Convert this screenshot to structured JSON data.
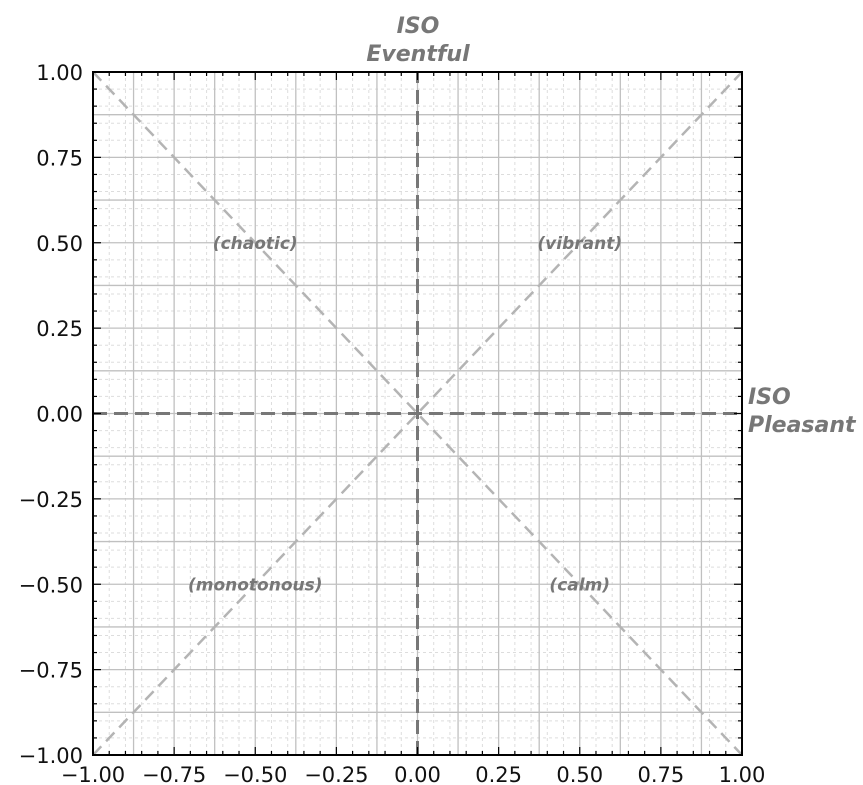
{
  "chart_data": {
    "type": "scatter",
    "xlim": [
      -1.0,
      1.0
    ],
    "ylim": [
      -1.0,
      1.0
    ],
    "grid": true,
    "minor_grid": true,
    "x_ticks": [
      "−1.00",
      "−0.75",
      "−0.50",
      "−0.25",
      "0.00",
      "0.25",
      "0.50",
      "0.75",
      "1.00"
    ],
    "y_ticks": [
      "1.00",
      "0.75",
      "0.50",
      "0.25",
      "0.00",
      "−0.25",
      "−0.50",
      "−0.75",
      "−1.00"
    ],
    "x_tick_values": [
      -1.0,
      -0.75,
      -0.5,
      -0.25,
      0.0,
      0.25,
      0.5,
      0.75,
      1.0
    ],
    "y_tick_values": [
      1.0,
      0.75,
      0.5,
      0.25,
      0.0,
      -0.25,
      -0.5,
      -0.75,
      -1.0
    ],
    "axis_titles": {
      "y_line1": "ISO",
      "y_line2": "Eventful",
      "x_line1": "ISO",
      "x_line2": "Pleasant"
    },
    "reference_lines": [
      {
        "name": "vertical-axis",
        "from": [
          0,
          -1
        ],
        "to": [
          0,
          1
        ],
        "style": "dashed"
      },
      {
        "name": "horizontal-axis",
        "from": [
          -1,
          0
        ],
        "to": [
          1,
          0
        ],
        "style": "dashed"
      },
      {
        "name": "diagonal-positive",
        "from": [
          -1,
          -1
        ],
        "to": [
          1,
          1
        ],
        "style": "dashed"
      },
      {
        "name": "diagonal-negative",
        "from": [
          -1,
          1
        ],
        "to": [
          1,
          -1
        ],
        "style": "dashed"
      }
    ],
    "annotations": [
      {
        "name": "chaotic",
        "text": "(chaotic)",
        "x": -0.5,
        "y": 0.5
      },
      {
        "name": "vibrant",
        "text": "(vibrant)",
        "x": 0.5,
        "y": 0.5
      },
      {
        "name": "monotonous",
        "text": "(monotonous)",
        "x": -0.5,
        "y": -0.5
      },
      {
        "name": "calm",
        "text": "(calm)",
        "x": 0.5,
        "y": -0.5
      }
    ],
    "colors": {
      "major_grid": "#c0c0c0",
      "minor_grid": "#dddddd",
      "axis_dashed": "#777777",
      "diagonal_dashed": "#b4b4b4",
      "frame": "#000000",
      "label_text": "#777777"
    }
  }
}
